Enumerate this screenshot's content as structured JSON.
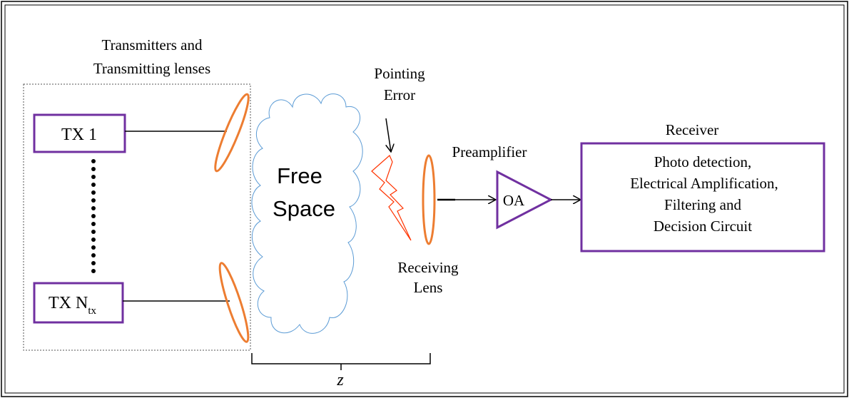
{
  "transmitters": {
    "title_line1": "Transmitters and",
    "title_line2": "Transmitting lenses",
    "tx1_label": "TX 1",
    "txn_label": "TX N",
    "txn_subscript": "tx"
  },
  "free_space": {
    "line1": "Free",
    "line2": "Space"
  },
  "pointing_error": {
    "line1": "Pointing",
    "line2": "Error"
  },
  "receiving_lens": {
    "line1": "Receiving",
    "line2": "Lens"
  },
  "preamplifier": {
    "title": "Preamplifier",
    "label": "OA"
  },
  "receiver": {
    "title": "Receiver",
    "lines": [
      "Photo detection,",
      "Electrical Amplification,",
      "Filtering and",
      "Decision Circuit"
    ]
  },
  "distance": {
    "label": "z"
  },
  "colors": {
    "box_border": "#7030a0",
    "lens": "#ed7d31",
    "cloud": "#5b9bd5",
    "lightning": "#ff3300"
  }
}
